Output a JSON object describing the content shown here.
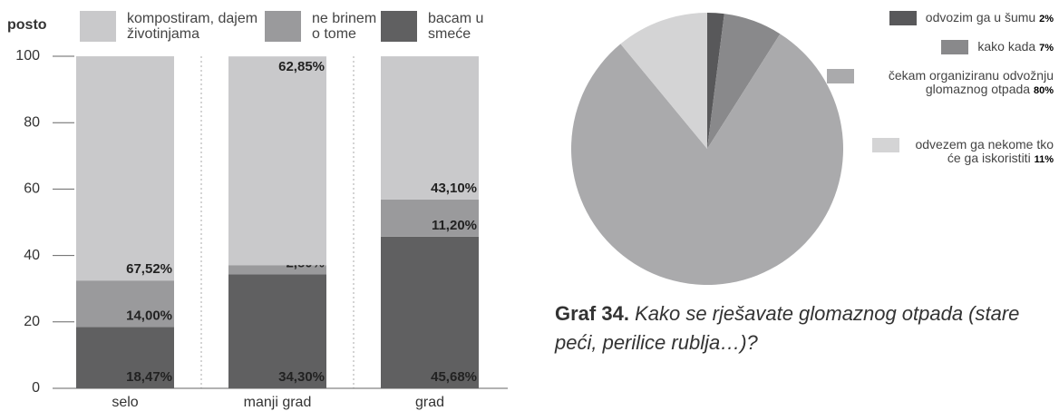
{
  "chart_data": [
    {
      "type": "stacked_bar",
      "y_label": "posto",
      "categories": [
        "selo",
        "manji grad",
        "grad"
      ],
      "series": [
        {
          "name": "bacam u smeće",
          "color": "#606061",
          "values": [
            18.47,
            34.3,
            45.68
          ],
          "value_labels": [
            "18,47%",
            "34,30%",
            "45,68%"
          ]
        },
        {
          "name": "ne brinem o tome",
          "color": "#9a9a9c",
          "values": [
            14.0,
            2.8,
            11.2
          ],
          "value_labels": [
            "14,00%",
            "2,80%",
            "11,20%"
          ]
        },
        {
          "name": "kompostiram, dajem životinjama",
          "color": "#c9c9cb",
          "values": [
            67.52,
            62.85,
            43.1
          ],
          "value_labels": [
            "67,52%",
            "62,85%",
            "43,10%"
          ]
        }
      ],
      "ylim": [
        0,
        100
      ],
      "yticks": [
        0,
        20,
        40,
        60,
        80,
        100
      ]
    },
    {
      "type": "pie",
      "caption_label": "Graf 34.",
      "title": "Kako se rješavate glomaznog otpada (stare peći, perilice rublja…)?",
      "categories": [
        "odvozim ga u šumu",
        "kako kada",
        "čekam organiziranu odvožnju glomaznog otpada",
        "odvezem ga nekome tko će ga iskoristiti"
      ],
      "values": [
        2,
        7,
        80,
        11
      ],
      "value_labels": [
        "2%",
        "7%",
        "80%",
        "11%"
      ],
      "colors": [
        "#58585a",
        "#89898b",
        "#aaaaac",
        "#d4d4d5"
      ]
    }
  ]
}
